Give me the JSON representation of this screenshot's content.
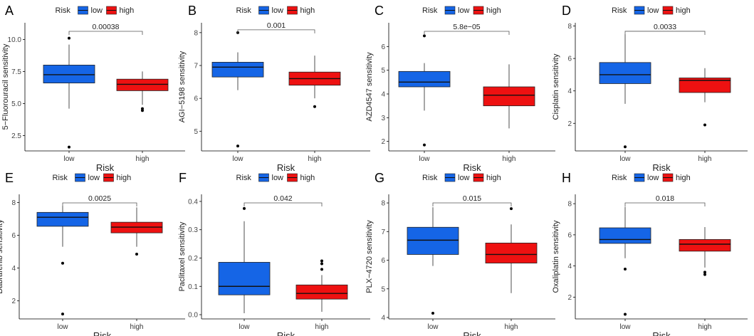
{
  "legend": {
    "title": "Risk",
    "low_label": "low",
    "high_label": "high"
  },
  "colors": {
    "low": "#1565e6",
    "high": "#ee1111",
    "median": "#111111",
    "outline": "#222222",
    "outlier": "#000000"
  },
  "x_title": "Risk",
  "categories": [
    "low",
    "high"
  ],
  "chart_data": [
    {
      "panel": "A",
      "type": "boxplot",
      "ylabel": "5−Fluorouracil sensitivity",
      "ylim": [
        1.3,
        11.3
      ],
      "yticks": [
        "2.5",
        "5.0",
        "7.5",
        "10.0"
      ],
      "yticks_num": [
        2.5,
        5.0,
        7.5,
        10.0
      ],
      "pvalue": "0.00038",
      "series": [
        {
          "name": "low",
          "whisker_low": 4.6,
          "q1": 6.6,
          "median": 7.25,
          "q3": 8.0,
          "whisker_high": 9.6,
          "outliers": [
            10.1,
            1.6
          ]
        },
        {
          "name": "high",
          "whisker_low": 4.9,
          "q1": 6.0,
          "median": 6.5,
          "q3": 6.9,
          "whisker_high": 7.5,
          "outliers": [
            4.6,
            4.45
          ]
        }
      ]
    },
    {
      "panel": "B",
      "type": "boxplot",
      "ylabel": "AGI−5198 sensitivity",
      "ylim": [
        4.4,
        8.3
      ],
      "yticks": [
        "5",
        "6",
        "7",
        "8"
      ],
      "yticks_num": [
        5,
        6,
        7,
        8
      ],
      "pvalue": "0.001",
      "series": [
        {
          "name": "low",
          "whisker_low": 6.25,
          "q1": 6.65,
          "median": 6.95,
          "q3": 7.1,
          "whisker_high": 7.4,
          "outliers": [
            8.0,
            4.55
          ]
        },
        {
          "name": "high",
          "whisker_low": 6.0,
          "q1": 6.4,
          "median": 6.6,
          "q3": 6.8,
          "whisker_high": 7.3,
          "outliers": [
            5.75
          ]
        }
      ]
    },
    {
      "panel": "C",
      "type": "boxplot",
      "ylabel": "AZD4547 sensitivity",
      "ylim": [
        1.6,
        7.0
      ],
      "yticks": [
        "2",
        "3",
        "4",
        "5",
        "6"
      ],
      "yticks_num": [
        2,
        3,
        4,
        5,
        6
      ],
      "pvalue": "5.8e−05",
      "series": [
        {
          "name": "low",
          "whisker_low": 3.3,
          "q1": 4.3,
          "median": 4.5,
          "q3": 4.95,
          "whisker_high": 5.3,
          "outliers": [
            6.45,
            1.85
          ]
        },
        {
          "name": "high",
          "whisker_low": 2.55,
          "q1": 3.5,
          "median": 3.95,
          "q3": 4.3,
          "whisker_high": 5.25,
          "outliers": []
        }
      ]
    },
    {
      "panel": "D",
      "type": "boxplot",
      "ylabel": "Cisplatin sensitivity",
      "ylim": [
        0.3,
        8.2
      ],
      "yticks": [
        "2",
        "4",
        "6",
        "8"
      ],
      "yticks_num": [
        2,
        4,
        6,
        8
      ],
      "pvalue": "0.0033",
      "series": [
        {
          "name": "low",
          "whisker_low": 3.2,
          "q1": 4.45,
          "median": 5.0,
          "q3": 5.75,
          "whisker_high": 7.5,
          "outliers": [
            0.55
          ]
        },
        {
          "name": "high",
          "whisker_low": 3.3,
          "q1": 3.9,
          "median": 4.65,
          "q3": 4.8,
          "whisker_high": 5.4,
          "outliers": [
            1.9
          ]
        }
      ]
    },
    {
      "panel": "E",
      "type": "boxplot",
      "ylabel": "Dabrafenib sensitivity",
      "ylim": [
        0.9,
        8.5
      ],
      "yticks": [
        "2",
        "4",
        "6",
        "8"
      ],
      "yticks_num": [
        2,
        4,
        6,
        8
      ],
      "pvalue": "0.0025",
      "series": [
        {
          "name": "low",
          "whisker_low": 5.3,
          "q1": 6.55,
          "median": 7.1,
          "q3": 7.4,
          "whisker_high": 7.8,
          "outliers": [
            4.3,
            1.2
          ]
        },
        {
          "name": "high",
          "whisker_low": 5.3,
          "q1": 6.15,
          "median": 6.5,
          "q3": 6.8,
          "whisker_high": 7.7,
          "outliers": [
            4.85
          ]
        }
      ]
    },
    {
      "panel": "F",
      "type": "boxplot",
      "ylabel": "Paclitaxel sensitivity",
      "ylim": [
        -0.015,
        0.425
      ],
      "yticks": [
        "0.0",
        "0.1",
        "0.2",
        "0.3",
        "0.4"
      ],
      "yticks_num": [
        0.0,
        0.1,
        0.2,
        0.3,
        0.4
      ],
      "pvalue": "0.042",
      "series": [
        {
          "name": "low",
          "whisker_low": 0.005,
          "q1": 0.07,
          "median": 0.1,
          "q3": 0.185,
          "whisker_high": 0.33,
          "outliers": [
            0.375
          ]
        },
        {
          "name": "high",
          "whisker_low": 0.01,
          "q1": 0.055,
          "median": 0.075,
          "q3": 0.105,
          "whisker_high": 0.14,
          "outliers": [
            0.19,
            0.18,
            0.16
          ]
        }
      ]
    },
    {
      "panel": "G",
      "type": "boxplot",
      "ylabel": "PLX−4720 sensitivity",
      "ylim": [
        3.95,
        8.3
      ],
      "yticks": [
        "4",
        "5",
        "6",
        "7",
        "8"
      ],
      "yticks_num": [
        4,
        5,
        6,
        7,
        8
      ],
      "pvalue": "0.015",
      "series": [
        {
          "name": "low",
          "whisker_low": 5.8,
          "q1": 6.2,
          "median": 6.7,
          "q3": 7.15,
          "whisker_high": 7.85,
          "outliers": [
            4.15
          ]
        },
        {
          "name": "high",
          "whisker_low": 4.85,
          "q1": 5.9,
          "median": 6.2,
          "q3": 6.6,
          "whisker_high": 7.25,
          "outliers": [
            7.8
          ]
        }
      ]
    },
    {
      "panel": "H",
      "type": "boxplot",
      "ylabel": "Oxaliplatin sensitivity",
      "ylim": [
        0.6,
        8.6
      ],
      "yticks": [
        "2",
        "4",
        "6",
        "8"
      ],
      "yticks_num": [
        2,
        4,
        6,
        8
      ],
      "pvalue": "0.018",
      "series": [
        {
          "name": "low",
          "whisker_low": 4.5,
          "q1": 5.45,
          "median": 5.7,
          "q3": 6.45,
          "whisker_high": 7.8,
          "outliers": [
            3.8,
            0.9
          ]
        },
        {
          "name": "high",
          "whisker_low": 3.9,
          "q1": 4.95,
          "median": 5.4,
          "q3": 5.7,
          "whisker_high": 6.5,
          "outliers": [
            3.6,
            3.45
          ]
        }
      ]
    }
  ]
}
